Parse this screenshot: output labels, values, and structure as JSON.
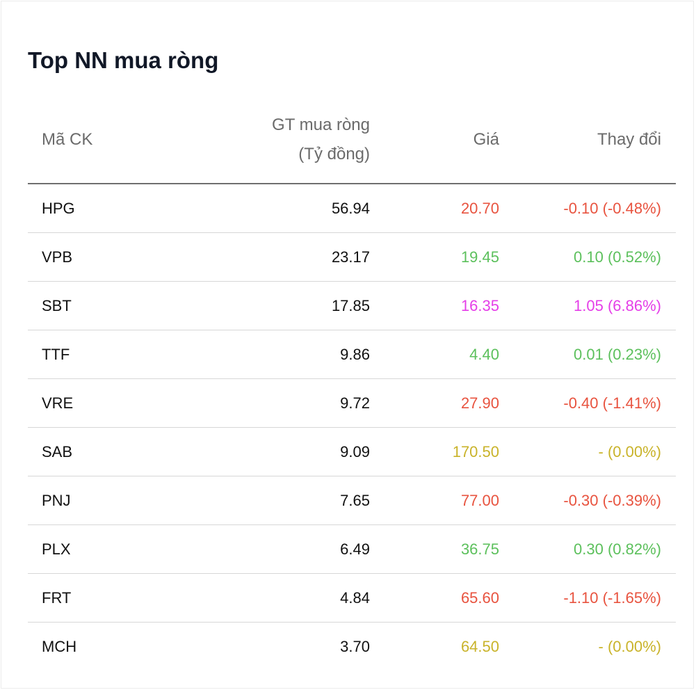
{
  "title": "Top NN mua ròng",
  "colors": {
    "down": "#e8533f",
    "up": "#5cc05c",
    "ceiling": "#e53ee8",
    "reference": "#c9b32a"
  },
  "columns": {
    "symbol": "Mã CK",
    "net_value_line1": "GT mua ròng",
    "net_value_line2": "(Tỷ đồng)",
    "price": "Giá",
    "change": "Thay đổi"
  },
  "rows": [
    {
      "symbol": "HPG",
      "value": "56.94",
      "price": "20.70",
      "change": "-0.10 (-0.48%)",
      "status": "down"
    },
    {
      "symbol": "VPB",
      "value": "23.17",
      "price": "19.45",
      "change": "0.10 (0.52%)",
      "status": "up"
    },
    {
      "symbol": "SBT",
      "value": "17.85",
      "price": "16.35",
      "change": "1.05 (6.86%)",
      "status": "ceiling"
    },
    {
      "symbol": "TTF",
      "value": "9.86",
      "price": "4.40",
      "change": "0.01 (0.23%)",
      "status": "up"
    },
    {
      "symbol": "VRE",
      "value": "9.72",
      "price": "27.90",
      "change": "-0.40 (-1.41%)",
      "status": "down"
    },
    {
      "symbol": "SAB",
      "value": "9.09",
      "price": "170.50",
      "change": "- (0.00%)",
      "status": "reference"
    },
    {
      "symbol": "PNJ",
      "value": "7.65",
      "price": "77.00",
      "change": "-0.30 (-0.39%)",
      "status": "down"
    },
    {
      "symbol": "PLX",
      "value": "6.49",
      "price": "36.75",
      "change": "0.30 (0.82%)",
      "status": "up"
    },
    {
      "symbol": "FRT",
      "value": "4.84",
      "price": "65.60",
      "change": "-1.10 (-1.65%)",
      "status": "down"
    },
    {
      "symbol": "MCH",
      "value": "3.70",
      "price": "64.50",
      "change": "- (0.00%)",
      "status": "reference"
    }
  ]
}
